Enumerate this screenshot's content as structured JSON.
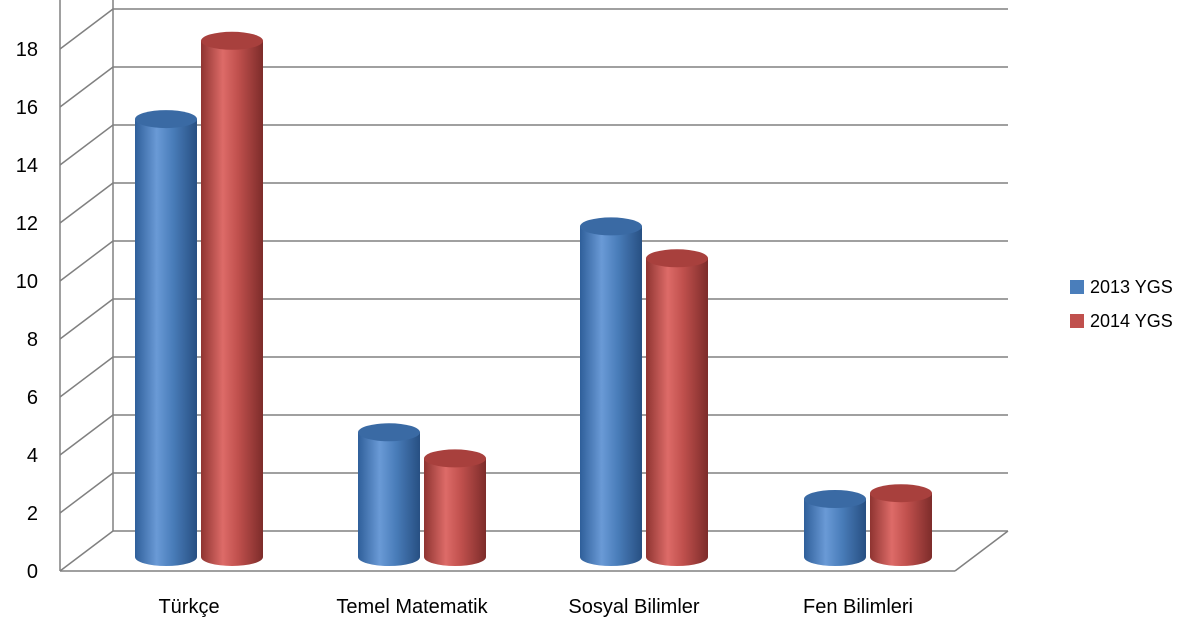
{
  "chart_data": {
    "type": "bar",
    "title": "",
    "xlabel": "",
    "ylabel": "",
    "ylim": [
      0,
      18
    ],
    "yticks": [
      "0",
      "2",
      "4",
      "6",
      "8",
      "10",
      "12",
      "14",
      "16",
      "18"
    ],
    "categories": [
      "Türkçe",
      "Temel Matematik",
      "Sosyal Bilimler",
      "Fen Bilimleri"
    ],
    "series": [
      {
        "name": "2013 YGS",
        "values": [
          15.1,
          4.3,
          11.4,
          2.0
        ],
        "color": "#4a7ebb"
      },
      {
        "name": "2014 YGS",
        "values": [
          17.8,
          3.4,
          10.3,
          2.2
        ],
        "color": "#c0504d"
      }
    ],
    "grid": true,
    "legend_position": "right",
    "style": "3d-cylinder"
  }
}
